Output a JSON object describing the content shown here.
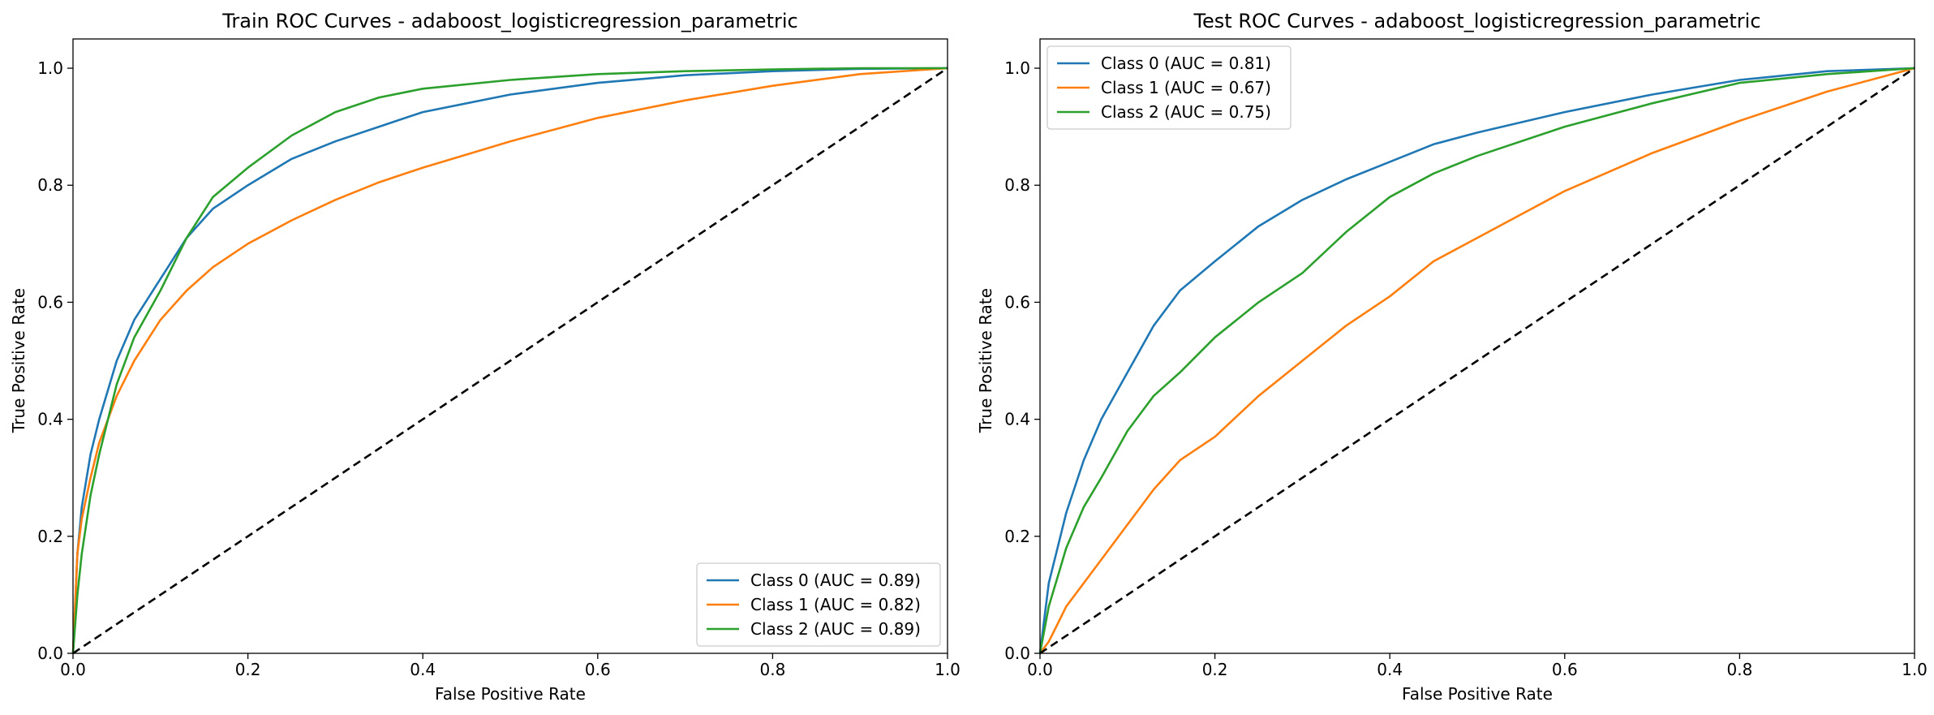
{
  "chart_data": [
    {
      "type": "line",
      "title": "Train ROC Curves - adaboost_logisticregression_parametric",
      "xlabel": "False Positive Rate",
      "ylabel": "True Positive Rate",
      "xlim": [
        0.0,
        1.0
      ],
      "ylim": [
        0.0,
        1.05
      ],
      "xticks": [
        "0.0",
        "0.2",
        "0.4",
        "0.6",
        "0.8",
        "1.0"
      ],
      "yticks": [
        "0.0",
        "0.2",
        "0.4",
        "0.6",
        "0.8",
        "1.0"
      ],
      "grid": false,
      "legend_position": "lower-right",
      "series": [
        {
          "name": "Class 0 (AUC = 0.89)",
          "color": "#1f77b4",
          "x": [
            0,
            0.005,
            0.01,
            0.02,
            0.03,
            0.05,
            0.07,
            0.1,
            0.13,
            0.16,
            0.2,
            0.25,
            0.3,
            0.35,
            0.4,
            0.5,
            0.6,
            0.7,
            0.8,
            0.9,
            1.0
          ],
          "y": [
            0,
            0.17,
            0.25,
            0.34,
            0.4,
            0.5,
            0.57,
            0.64,
            0.71,
            0.76,
            0.8,
            0.845,
            0.875,
            0.9,
            0.925,
            0.955,
            0.975,
            0.988,
            0.995,
            0.999,
            1.0
          ]
        },
        {
          "name": "Class 1 (AUC = 0.82)",
          "color": "#ff7f0e",
          "x": [
            0,
            0.005,
            0.01,
            0.02,
            0.03,
            0.05,
            0.07,
            0.1,
            0.13,
            0.16,
            0.2,
            0.25,
            0.3,
            0.35,
            0.4,
            0.5,
            0.6,
            0.7,
            0.8,
            0.9,
            1.0
          ],
          "y": [
            0,
            0.17,
            0.23,
            0.3,
            0.36,
            0.44,
            0.5,
            0.57,
            0.62,
            0.66,
            0.7,
            0.74,
            0.775,
            0.805,
            0.83,
            0.875,
            0.915,
            0.945,
            0.97,
            0.99,
            1.0
          ]
        },
        {
          "name": "Class 2 (AUC = 0.89)",
          "color": "#2ca02c",
          "x": [
            0,
            0.005,
            0.01,
            0.02,
            0.03,
            0.05,
            0.07,
            0.1,
            0.13,
            0.16,
            0.2,
            0.25,
            0.3,
            0.35,
            0.4,
            0.5,
            0.6,
            0.7,
            0.8,
            0.9,
            1.0
          ],
          "y": [
            0,
            0.1,
            0.17,
            0.27,
            0.34,
            0.46,
            0.54,
            0.62,
            0.71,
            0.78,
            0.83,
            0.885,
            0.925,
            0.95,
            0.965,
            0.98,
            0.99,
            0.995,
            0.998,
            1.0,
            1.0
          ]
        },
        {
          "name": "",
          "color": "#000000",
          "dashed": true,
          "x": [
            0,
            1
          ],
          "y": [
            0,
            1
          ]
        }
      ]
    },
    {
      "type": "line",
      "title": "Test ROC Curves - adaboost_logisticregression_parametric",
      "xlabel": "False Positive Rate",
      "ylabel": "True Positive Rate",
      "xlim": [
        0.0,
        1.0
      ],
      "ylim": [
        0.0,
        1.05
      ],
      "xticks": [
        "0.0",
        "0.2",
        "0.4",
        "0.6",
        "0.8",
        "1.0"
      ],
      "yticks": [
        "0.0",
        "0.2",
        "0.4",
        "0.6",
        "0.8",
        "1.0"
      ],
      "grid": false,
      "legend_position": "upper-left",
      "series": [
        {
          "name": "Class 0 (AUC = 0.81)",
          "color": "#1f77b4",
          "x": [
            0,
            0.01,
            0.02,
            0.03,
            0.05,
            0.07,
            0.1,
            0.13,
            0.16,
            0.2,
            0.25,
            0.3,
            0.35,
            0.4,
            0.45,
            0.5,
            0.6,
            0.7,
            0.8,
            0.9,
            1.0
          ],
          "y": [
            0,
            0.12,
            0.18,
            0.24,
            0.33,
            0.4,
            0.48,
            0.56,
            0.62,
            0.67,
            0.73,
            0.775,
            0.81,
            0.84,
            0.87,
            0.89,
            0.925,
            0.955,
            0.98,
            0.995,
            1.0
          ]
        },
        {
          "name": "Class 1 (AUC = 0.67)",
          "color": "#ff7f0e",
          "x": [
            0,
            0.01,
            0.02,
            0.03,
            0.05,
            0.07,
            0.1,
            0.13,
            0.16,
            0.2,
            0.25,
            0.3,
            0.35,
            0.4,
            0.45,
            0.5,
            0.6,
            0.7,
            0.8,
            0.9,
            1.0
          ],
          "y": [
            0,
            0.02,
            0.05,
            0.08,
            0.12,
            0.16,
            0.22,
            0.28,
            0.33,
            0.37,
            0.44,
            0.5,
            0.56,
            0.61,
            0.67,
            0.71,
            0.79,
            0.855,
            0.91,
            0.96,
            1.0
          ]
        },
        {
          "name": "Class 2 (AUC = 0.75)",
          "color": "#2ca02c",
          "x": [
            0,
            0.01,
            0.02,
            0.03,
            0.05,
            0.07,
            0.1,
            0.13,
            0.16,
            0.2,
            0.25,
            0.3,
            0.35,
            0.4,
            0.45,
            0.5,
            0.6,
            0.7,
            0.8,
            0.9,
            1.0
          ],
          "y": [
            0,
            0.08,
            0.13,
            0.18,
            0.25,
            0.3,
            0.38,
            0.44,
            0.48,
            0.54,
            0.6,
            0.65,
            0.72,
            0.78,
            0.82,
            0.85,
            0.9,
            0.94,
            0.975,
            0.99,
            1.0
          ]
        },
        {
          "name": "",
          "color": "#000000",
          "dashed": true,
          "x": [
            0,
            1
          ],
          "y": [
            0,
            1
          ]
        }
      ]
    }
  ]
}
